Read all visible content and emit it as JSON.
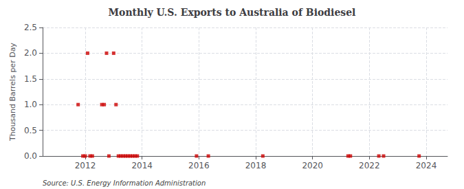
{
  "chart_data": {
    "type": "scatter",
    "title": "Monthly U.S. Exports to Australia of Biodiesel",
    "ylabel": "Thousand Barrels per Day",
    "annotations": [
      "Source: U.S. Energy Information Administration"
    ],
    "color": "#cc0000",
    "marker": "square",
    "grid": true,
    "xlim": [
      2010.5,
      2024.75
    ],
    "xticks": [
      2012,
      2014,
      2016,
      2018,
      2020,
      2022,
      2024
    ],
    "ylim": [
      0.0,
      2.5
    ],
    "yticks": [
      {
        "value": 0.0,
        "label": "0.0"
      },
      0.5,
      {
        "value": 1.0,
        "label": "1.0"
      },
      1.5,
      {
        "value": 2.0,
        "label": "2.0"
      },
      2.5
    ],
    "x": [
      2011.75,
      2011.917,
      2012.0,
      2012.083,
      2012.167,
      2012.25,
      2012.583,
      2012.667,
      2012.75,
      2012.833,
      2013.0,
      2013.083,
      2013.167,
      2013.25,
      2013.333,
      2013.417,
      2013.5,
      2013.583,
      2013.667,
      2013.75,
      2013.833,
      2015.917,
      2016.333,
      2018.25,
      2021.25,
      2021.333,
      2022.333,
      2022.5,
      2023.75
    ],
    "values": [
      1.0,
      0.0,
      0.0,
      2.0,
      0.0,
      0.0,
      1.0,
      1.0,
      2.0,
      0.0,
      2.0,
      1.0,
      0.0,
      0.0,
      0.0,
      0.0,
      0.0,
      0.0,
      0.0,
      0.0,
      0.0,
      0.0,
      0.0,
      0.0,
      0.0,
      0.0,
      0.0,
      0.0,
      0.0
    ]
  }
}
